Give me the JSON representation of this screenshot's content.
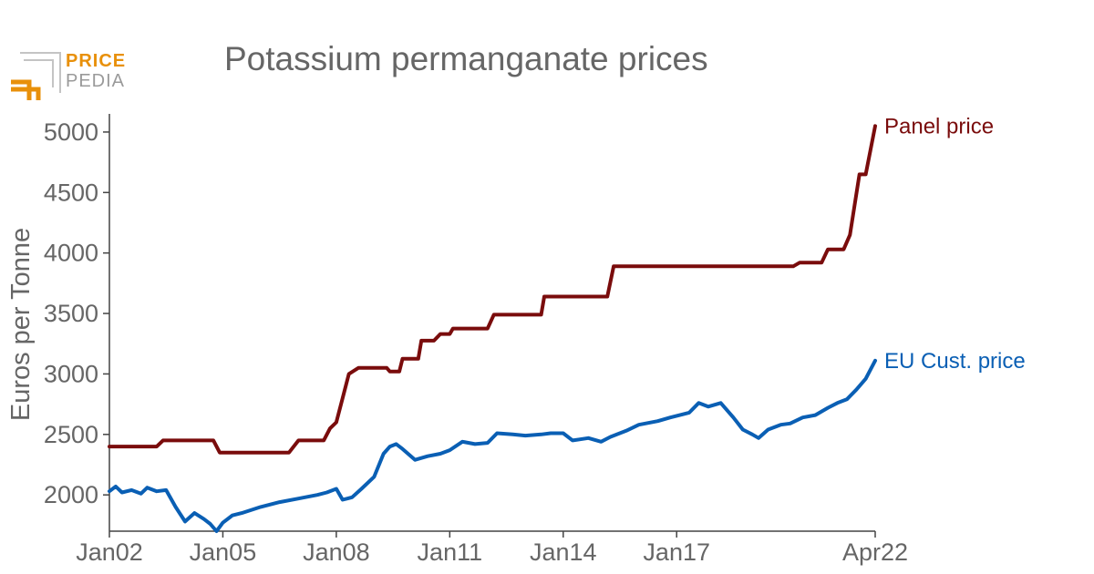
{
  "brand": {
    "logo_top": "PRICE",
    "logo_bottom": "PEDIA",
    "logo_top_color": "#e8900a",
    "logo_bottom_color": "#9a9a9a"
  },
  "chart_data": {
    "type": "line",
    "title": "Potassium permanganate prices",
    "ylabel": "Euros per Tonne",
    "xlabel": "",
    "ylim": [
      1700,
      5150
    ],
    "xlim": [
      "2002-01",
      "2022-04"
    ],
    "y_ticks": [
      2000,
      2500,
      3000,
      3500,
      4000,
      4500,
      5000
    ],
    "x_ticks": [
      {
        "date": "2002-01",
        "label": "Jan02"
      },
      {
        "date": "2005-01",
        "label": "Jan05"
      },
      {
        "date": "2008-01",
        "label": "Jan08"
      },
      {
        "date": "2011-01",
        "label": "Jan11"
      },
      {
        "date": "2014-01",
        "label": "Jan14"
      },
      {
        "date": "2017-01",
        "label": "Jan17"
      },
      {
        "date": "2022-04",
        "label": "Apr22"
      }
    ],
    "grid": false,
    "legend": "inline labels at line ends",
    "series": [
      {
        "name": "Panel price",
        "color": "#7a0c0c",
        "points": [
          [
            "2002-01",
            2400
          ],
          [
            "2003-04",
            2400
          ],
          [
            "2003-06",
            2450
          ],
          [
            "2004-10",
            2450
          ],
          [
            "2004-12",
            2350
          ],
          [
            "2006-10",
            2350
          ],
          [
            "2007-01",
            2450
          ],
          [
            "2007-09",
            2450
          ],
          [
            "2007-11",
            2550
          ],
          [
            "2008-01",
            2600
          ],
          [
            "2008-03",
            2800
          ],
          [
            "2008-05",
            3000
          ],
          [
            "2008-08",
            3050
          ],
          [
            "2009-05",
            3050
          ],
          [
            "2009-06",
            3020
          ],
          [
            "2009-09",
            3020
          ],
          [
            "2009-10",
            3125
          ],
          [
            "2010-03",
            3125
          ],
          [
            "2010-04",
            3275
          ],
          [
            "2010-08",
            3275
          ],
          [
            "2010-10",
            3330
          ],
          [
            "2011-01",
            3330
          ],
          [
            "2011-02",
            3375
          ],
          [
            "2012-01",
            3375
          ],
          [
            "2012-03",
            3490
          ],
          [
            "2013-06",
            3490
          ],
          [
            "2013-07",
            3640
          ],
          [
            "2015-03",
            3640
          ],
          [
            "2015-05",
            3890
          ],
          [
            "2020-02",
            3890
          ],
          [
            "2020-04",
            3920
          ],
          [
            "2020-11",
            3920
          ],
          [
            "2021-01",
            4030
          ],
          [
            "2021-06",
            4030
          ],
          [
            "2021-08",
            4150
          ],
          [
            "2021-11",
            4650
          ],
          [
            "2022-01",
            4650
          ],
          [
            "2022-04",
            5050
          ]
        ]
      },
      {
        "name": "EU Cust. price",
        "color": "#0a5fb4",
        "points": [
          [
            "2002-01",
            2030
          ],
          [
            "2002-03",
            2070
          ],
          [
            "2002-05",
            2020
          ],
          [
            "2002-08",
            2040
          ],
          [
            "2002-11",
            2010
          ],
          [
            "2003-01",
            2060
          ],
          [
            "2003-04",
            2030
          ],
          [
            "2003-07",
            2040
          ],
          [
            "2003-10",
            1900
          ],
          [
            "2004-01",
            1780
          ],
          [
            "2004-04",
            1850
          ],
          [
            "2004-07",
            1800
          ],
          [
            "2004-09",
            1760
          ],
          [
            "2004-11",
            1700
          ],
          [
            "2005-01",
            1770
          ],
          [
            "2005-04",
            1830
          ],
          [
            "2005-07",
            1850
          ],
          [
            "2006-01",
            1900
          ],
          [
            "2006-07",
            1940
          ],
          [
            "2007-01",
            1970
          ],
          [
            "2007-07",
            2000
          ],
          [
            "2007-10",
            2020
          ],
          [
            "2008-01",
            2050
          ],
          [
            "2008-03",
            1960
          ],
          [
            "2008-06",
            1980
          ],
          [
            "2008-09",
            2050
          ],
          [
            "2009-01",
            2150
          ],
          [
            "2009-04",
            2340
          ],
          [
            "2009-06",
            2400
          ],
          [
            "2009-08",
            2420
          ],
          [
            "2009-10",
            2380
          ],
          [
            "2010-02",
            2290
          ],
          [
            "2010-06",
            2320
          ],
          [
            "2010-10",
            2340
          ],
          [
            "2011-01",
            2370
          ],
          [
            "2011-05",
            2440
          ],
          [
            "2011-09",
            2420
          ],
          [
            "2012-01",
            2430
          ],
          [
            "2012-04",
            2510
          ],
          [
            "2012-09",
            2500
          ],
          [
            "2013-01",
            2490
          ],
          [
            "2013-06",
            2500
          ],
          [
            "2013-09",
            2510
          ],
          [
            "2014-01",
            2510
          ],
          [
            "2014-04",
            2450
          ],
          [
            "2014-09",
            2470
          ],
          [
            "2015-01",
            2440
          ],
          [
            "2015-04",
            2480
          ],
          [
            "2015-09",
            2530
          ],
          [
            "2016-01",
            2580
          ],
          [
            "2016-07",
            2610
          ],
          [
            "2016-11",
            2640
          ],
          [
            "2017-02",
            2660
          ],
          [
            "2017-05",
            2680
          ],
          [
            "2017-08",
            2760
          ],
          [
            "2017-11",
            2730
          ],
          [
            "2018-03",
            2760
          ],
          [
            "2018-07",
            2640
          ],
          [
            "2018-10",
            2540
          ],
          [
            "2019-01",
            2500
          ],
          [
            "2019-03",
            2470
          ],
          [
            "2019-06",
            2540
          ],
          [
            "2019-10",
            2580
          ],
          [
            "2020-01",
            2590
          ],
          [
            "2020-05",
            2640
          ],
          [
            "2020-09",
            2660
          ],
          [
            "2021-01",
            2720
          ],
          [
            "2021-04",
            2760
          ],
          [
            "2021-07",
            2790
          ],
          [
            "2021-10",
            2870
          ],
          [
            "2022-01",
            2960
          ],
          [
            "2022-04",
            3110
          ]
        ]
      }
    ]
  }
}
